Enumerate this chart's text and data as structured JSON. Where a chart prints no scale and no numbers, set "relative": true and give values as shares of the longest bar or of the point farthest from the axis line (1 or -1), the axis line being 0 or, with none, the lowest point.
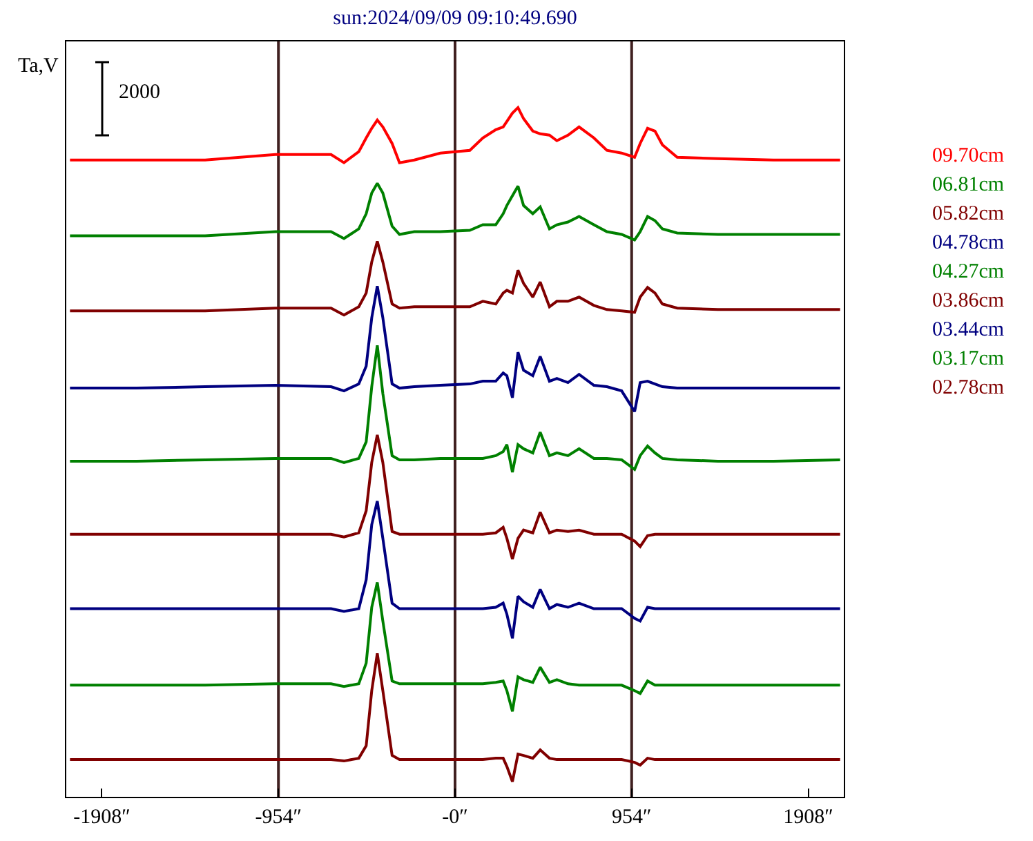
{
  "chart_data": {
    "type": "line",
    "title": "sun:2024/09/09 09:10:49.690",
    "ylabel": "Ta,V",
    "annotations": [
      "2000"
    ],
    "relative": true,
    "legend": "right",
    "line_style": "solid",
    "marker": "none",
    "xlim": [
      -2100,
      2100
    ],
    "xticks": [
      {
        "value": -1908,
        "label": "-1908″"
      },
      {
        "value": -954,
        "label": "-954″"
      },
      {
        "value": 0,
        "label": "-0″"
      },
      {
        "value": 954,
        "label": "954″"
      },
      {
        "value": 1908,
        "label": "1908″"
      }
    ],
    "ref_lines": [
      {
        "axis": "x",
        "value": -954,
        "label": null,
        "color": "#402020"
      },
      {
        "axis": "x",
        "value": 0,
        "label": null,
        "color": "#402020"
      },
      {
        "axis": "x",
        "value": 954,
        "label": null,
        "color": "#402020"
      }
    ],
    "x": [
      -2080,
      -1720,
      -1350,
      -970,
      -670,
      -600,
      -520,
      -480,
      -450,
      -420,
      -390,
      -340,
      -300,
      -220,
      -80,
      80,
      150,
      220,
      260,
      280,
      310,
      340,
      370,
      420,
      460,
      510,
      550,
      610,
      670,
      750,
      820,
      900,
      970,
      1000,
      1040,
      1080,
      1120,
      1200,
      1420,
      1720,
      2080
    ],
    "series": [
      {
        "name": "09.70cm",
        "color": "#ff0000",
        "values": [
          0.924,
          0.924,
          0.924,
          0.932,
          0.932,
          0.92,
          0.936,
          0.956,
          0.97,
          0.982,
          0.972,
          0.948,
          0.92,
          0.924,
          0.934,
          0.938,
          0.956,
          0.968,
          0.972,
          0.98,
          0.992,
          1,
          0.984,
          0.966,
          0.962,
          0.96,
          0.952,
          0.96,
          0.972,
          0.956,
          0.938,
          0.934,
          0.928,
          0.948,
          0.97,
          0.966,
          0.946,
          0.928,
          0.926,
          0.924,
          0.924
        ]
      },
      {
        "name": "06.81cm",
        "color": "#008000",
        "values": [
          0.814,
          0.814,
          0.814,
          0.82,
          0.82,
          0.81,
          0.824,
          0.846,
          0.876,
          0.89,
          0.876,
          0.828,
          0.816,
          0.82,
          0.82,
          0.822,
          0.83,
          0.83,
          0.846,
          0.858,
          0.872,
          0.886,
          0.858,
          0.846,
          0.856,
          0.824,
          0.83,
          0.834,
          0.842,
          0.83,
          0.82,
          0.816,
          0.808,
          0.82,
          0.842,
          0.836,
          0.824,
          0.818,
          0.816,
          0.816,
          0.816
        ]
      },
      {
        "name": "05.82cm",
        "color": "#800000",
        "values": [
          0.705,
          0.705,
          0.705,
          0.709,
          0.709,
          0.699,
          0.711,
          0.731,
          0.776,
          0.806,
          0.776,
          0.715,
          0.709,
          0.711,
          0.711,
          0.711,
          0.719,
          0.715,
          0.731,
          0.735,
          0.731,
          0.764,
          0.745,
          0.725,
          0.747,
          0.711,
          0.719,
          0.719,
          0.725,
          0.713,
          0.707,
          0.705,
          0.703,
          0.725,
          0.739,
          0.731,
          0.715,
          0.709,
          0.707,
          0.707,
          0.707
        ]
      },
      {
        "name": "04.78cm",
        "color": "#000080",
        "values": [
          0.593,
          0.593,
          0.595,
          0.597,
          0.595,
          0.589,
          0.599,
          0.625,
          0.695,
          0.741,
          0.695,
          0.599,
          0.593,
          0.595,
          0.597,
          0.599,
          0.603,
          0.603,
          0.615,
          0.611,
          0.579,
          0.645,
          0.619,
          0.611,
          0.639,
          0.603,
          0.607,
          0.601,
          0.613,
          0.597,
          0.595,
          0.589,
          0.559,
          0.601,
          0.603,
          0.599,
          0.595,
          0.593,
          0.593,
          0.593,
          0.593
        ]
      },
      {
        "name": "04.27cm",
        "color": "#008000",
        "values": [
          0.487,
          0.487,
          0.489,
          0.491,
          0.491,
          0.485,
          0.491,
          0.515,
          0.595,
          0.655,
          0.585,
          0.495,
          0.489,
          0.489,
          0.491,
          0.491,
          0.491,
          0.495,
          0.501,
          0.511,
          0.471,
          0.511,
          0.505,
          0.499,
          0.529,
          0.495,
          0.499,
          0.495,
          0.505,
          0.491,
          0.491,
          0.489,
          0.475,
          0.495,
          0.509,
          0.499,
          0.491,
          0.489,
          0.487,
          0.487,
          0.489
        ]
      },
      {
        "name": "03.86cm",
        "color": "#800000",
        "values": [
          0.381,
          0.381,
          0.381,
          0.381,
          0.381,
          0.377,
          0.383,
          0.415,
          0.485,
          0.525,
          0.485,
          0.385,
          0.381,
          0.381,
          0.381,
          0.381,
          0.381,
          0.383,
          0.391,
          0.375,
          0.345,
          0.375,
          0.387,
          0.383,
          0.413,
          0.383,
          0.387,
          0.385,
          0.387,
          0.381,
          0.381,
          0.381,
          0.371,
          0.363,
          0.379,
          0.381,
          0.381,
          0.381,
          0.381,
          0.381,
          0.381
        ]
      },
      {
        "name": "03.44cm",
        "color": "#000080",
        "values": [
          0.273,
          0.273,
          0.273,
          0.273,
          0.273,
          0.269,
          0.273,
          0.315,
          0.395,
          0.429,
          0.375,
          0.281,
          0.273,
          0.273,
          0.273,
          0.273,
          0.273,
          0.275,
          0.281,
          0.265,
          0.23,
          0.291,
          0.283,
          0.275,
          0.301,
          0.273,
          0.279,
          0.275,
          0.281,
          0.273,
          0.273,
          0.273,
          0.259,
          0.255,
          0.275,
          0.273,
          0.273,
          0.273,
          0.273,
          0.273,
          0.273
        ]
      },
      {
        "name": "03.17cm",
        "color": "#008000",
        "values": [
          0.162,
          0.162,
          0.162,
          0.164,
          0.164,
          0.16,
          0.164,
          0.194,
          0.275,
          0.311,
          0.255,
          0.168,
          0.164,
          0.164,
          0.164,
          0.164,
          0.164,
          0.166,
          0.168,
          0.154,
          0.124,
          0.174,
          0.17,
          0.166,
          0.188,
          0.166,
          0.17,
          0.164,
          0.162,
          0.162,
          0.162,
          0.162,
          0.154,
          0.15,
          0.168,
          0.162,
          0.162,
          0.162,
          0.162,
          0.162,
          0.162
        ]
      },
      {
        "name": "02.78cm",
        "color": "#800000",
        "values": [
          0.054,
          0.054,
          0.054,
          0.054,
          0.054,
          0.052,
          0.056,
          0.074,
          0.154,
          0.208,
          0.154,
          0.06,
          0.054,
          0.054,
          0.054,
          0.054,
          0.054,
          0.056,
          0.056,
          0.044,
          0.022,
          0.062,
          0.06,
          0.056,
          0.068,
          0.056,
          0.054,
          0.054,
          0.054,
          0.054,
          0.054,
          0.054,
          0.05,
          0.046,
          0.056,
          0.054,
          0.054,
          0.054,
          0.054,
          0.054,
          0.054
        ]
      }
    ]
  }
}
